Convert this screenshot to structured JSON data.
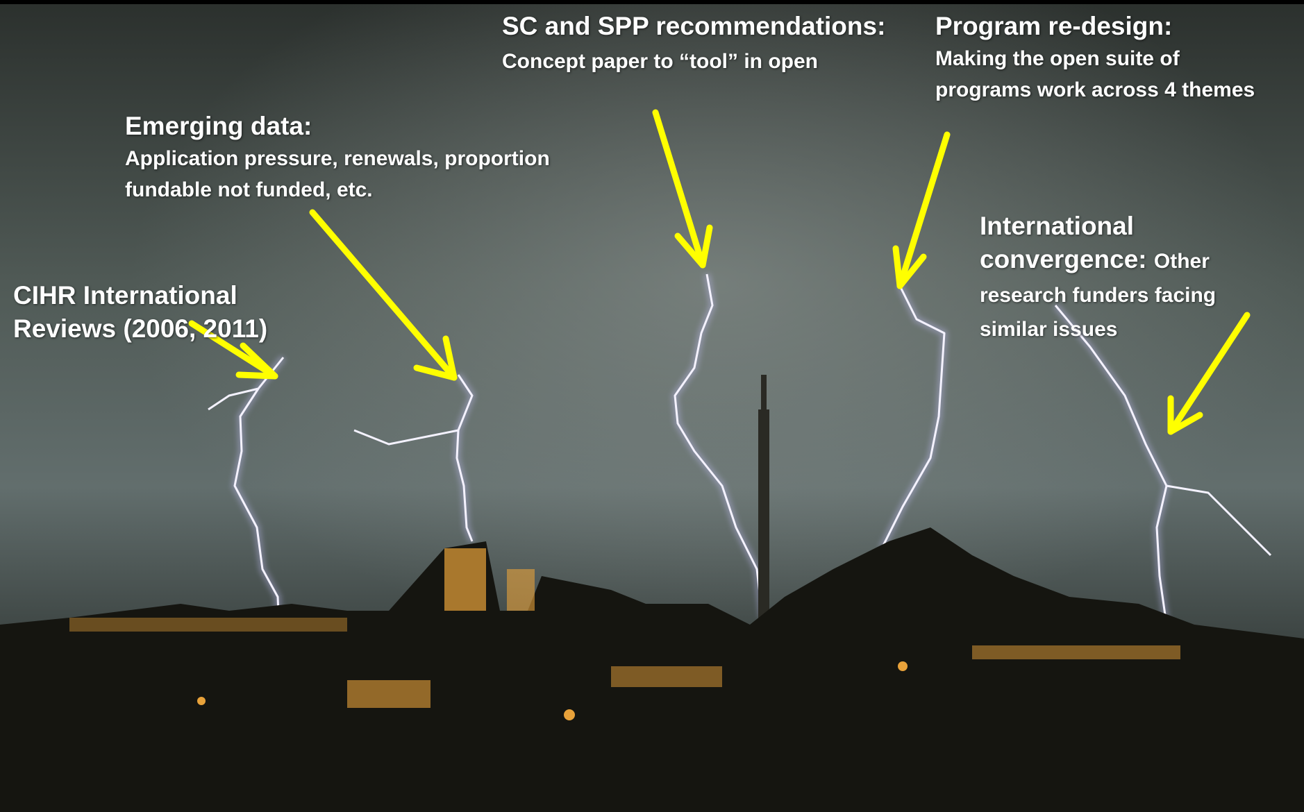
{
  "annotations": [
    {
      "heading": "CIHR International Reviews (2006, 2011)"
    },
    {
      "heading": "Emerging data:",
      "text": "Application pressure, renewals, proportion fundable not funded, etc."
    },
    {
      "heading": "SC and SPP recommendations:",
      "text": "Concept paper to “tool” in open"
    },
    {
      "heading": "Program re-design:",
      "text": "Making the open suite of programs work across 4 themes"
    },
    {
      "heading": "International convergence:",
      "text": "Other research funders facing similar issues"
    }
  ]
}
